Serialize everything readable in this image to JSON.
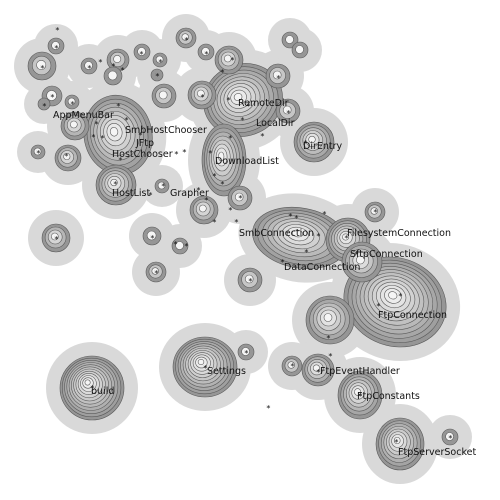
{
  "colors": {
    "background": "#ffffff",
    "halo": "#d9d9d9",
    "contour": "#5a5a5a",
    "peak": "#f4f4f4",
    "text": "#111111"
  },
  "nodes": [
    {
      "id": "appmenubar",
      "label": "AppMenuBar"
    },
    {
      "id": "smbhostchooser",
      "label": "SmbHostChooser"
    },
    {
      "id": "jftp",
      "label": "JFtp"
    },
    {
      "id": "hostchooser",
      "label": "HostChooser"
    },
    {
      "id": "hostlist",
      "label": "HostList"
    },
    {
      "id": "grapher",
      "label": "Grapher"
    },
    {
      "id": "remotedir",
      "label": "RemoteDir"
    },
    {
      "id": "localdir",
      "label": "LocalDir"
    },
    {
      "id": "direntry",
      "label": "DirEntry"
    },
    {
      "id": "downloadlist",
      "label": "DownloadList"
    },
    {
      "id": "smbconnection",
      "label": "SmbConnection"
    },
    {
      "id": "filesystemconnection",
      "label": "FilesystemConnection"
    },
    {
      "id": "sftpconnection",
      "label": "SftpConnection"
    },
    {
      "id": "dataconnection",
      "label": "DataConnection"
    },
    {
      "id": "ftpconnection",
      "label": "FtpConnection"
    },
    {
      "id": "settings",
      "label": "Settings"
    },
    {
      "id": "build",
      "label": "build"
    },
    {
      "id": "ftpeventhandler",
      "label": "FtpEventHandler"
    },
    {
      "id": "ftpconstants",
      "label": "FtpConstants"
    },
    {
      "id": "ftpserversocket",
      "label": "FtpServerSocket"
    }
  ],
  "marker_glyph": "*"
}
